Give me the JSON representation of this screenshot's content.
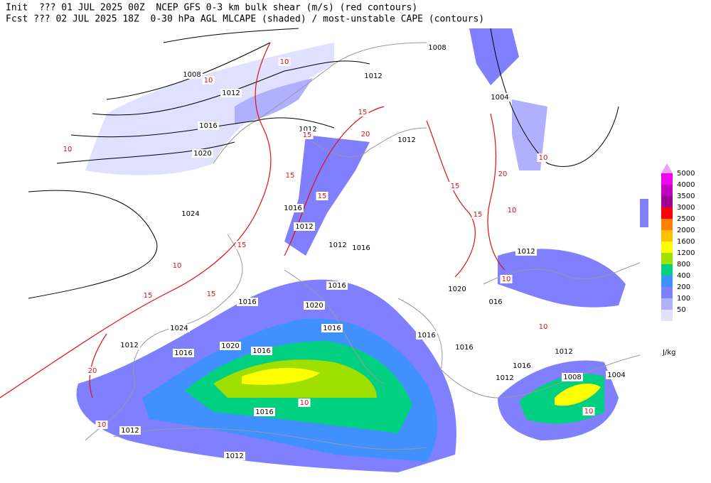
{
  "header": {
    "line1": "Init  ??? 01 JUL 2025 00Z  NCEP GFS 0-3 km bulk shear (m/s) (red contours)",
    "line2": "Fcst ??? 02 JUL 2025 18Z  0-30 hPa AGL MLCAPE (shaded) / most-unstable CAPE (contours)"
  },
  "colorbar": {
    "unit": "J/kg",
    "top_color": "#e8a0f0",
    "levels": [
      {
        "label": "5000",
        "color": "#f000f0"
      },
      {
        "label": "4000",
        "color": "#c000c0"
      },
      {
        "label": "3500",
        "color": "#a00090"
      },
      {
        "label": "3000",
        "color": "#ff0000"
      },
      {
        "label": "2500",
        "color": "#ff8000"
      },
      {
        "label": "2000",
        "color": "#ffc000"
      },
      {
        "label": "1600",
        "color": "#ffff00"
      },
      {
        "label": "1200",
        "color": "#a0e000"
      },
      {
        "label": "800",
        "color": "#00d080"
      },
      {
        "label": "400",
        "color": "#4090ff"
      },
      {
        "label": "200",
        "color": "#8080ff"
      },
      {
        "label": "100",
        "color": "#b0b0ff"
      },
      {
        "label": "50",
        "color": "#e0e0ff"
      }
    ]
  },
  "isobar_labels": [
    "1008",
    "1008",
    "1012",
    "1012",
    "1004",
    "1016",
    "1012",
    "1012",
    "1020",
    "1024",
    "1016",
    "1012",
    "1012",
    "1016",
    "1012",
    "1016",
    "1016",
    "1020",
    "1020",
    "016",
    "1024",
    "1016",
    "1012",
    "1016",
    "1020",
    "1016",
    "1016",
    "1016",
    "1012",
    "1016",
    "1012",
    "1008",
    "1004",
    "1016",
    "1012",
    "1012"
  ],
  "shear_labels": [
    "10",
    "10",
    "10",
    "15",
    "20",
    "15",
    "15",
    "15",
    "15",
    "15",
    "10",
    "20",
    "10",
    "15",
    "10",
    "15",
    "15",
    "20",
    "10",
    "10",
    "10",
    "10",
    "10"
  ]
}
